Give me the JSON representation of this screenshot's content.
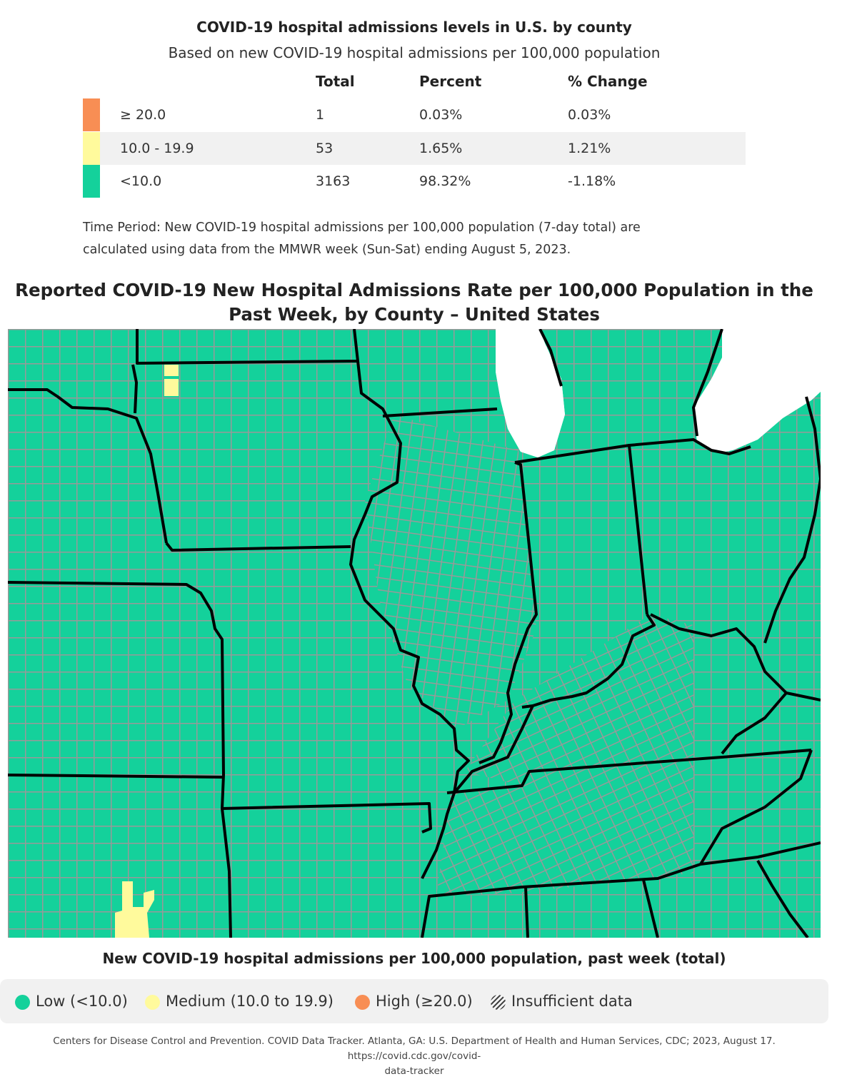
{
  "header": {
    "title": "COVID-19 hospital admissions levels in U.S. by county",
    "subtitle": "Based on new COVID-19 hospital admissions per 100,000 population"
  },
  "summary_table": {
    "columns": [
      "Total",
      "Percent",
      "% Change"
    ],
    "rows": [
      {
        "label": "≥ 20.0",
        "total": "1",
        "percent": "0.03%",
        "change": "0.03%",
        "color": "#F88E54"
      },
      {
        "label": "10.0 - 19.9",
        "total": "53",
        "percent": "1.65%",
        "change": "1.21%",
        "color": "#FFFA9C"
      },
      {
        "label": "<10.0",
        "total": "3163",
        "percent": "98.32%",
        "change": "-1.18%",
        "color": "#14D19B"
      }
    ]
  },
  "time_period": {
    "line1": "Time Period: New COVID-19 hospital admissions per 100,000 population (7-day total) are",
    "line2": "calculated using data from the MMWR week (Sun-Sat) ending August 5, 2023."
  },
  "map": {
    "title_line1": "Reported COVID-19 New Hospital Admissions Rate per 100,000 Population in the",
    "title_line2": "Past Week, by County – United States",
    "colors": {
      "low": "#14D19B",
      "medium": "#FFFA9C",
      "county_border": "#999999",
      "state_border": "#000000",
      "water": "#ffffff"
    }
  },
  "legend": {
    "title": "New COVID-19 hospital admissions per 100,000 population, past week (total)",
    "items": [
      {
        "label": "Low (<10.0)",
        "color": "#14D19B"
      },
      {
        "label": "Medium (10.0 to 19.9)",
        "color": "#FFFA9C"
      },
      {
        "label": "High (≥20.0)",
        "color": "#F88E54"
      },
      {
        "label": "Insufficient data",
        "icon": "hatched-circle-icon"
      }
    ]
  },
  "citation": {
    "line1": "Centers for Disease Control and Prevention. COVID Data Tracker. Atlanta, GA: U.S. Department of Health and Human Services, CDC; 2023, August 17. https://covid.cdc.gov/covid-",
    "line2": "data-tracker"
  }
}
